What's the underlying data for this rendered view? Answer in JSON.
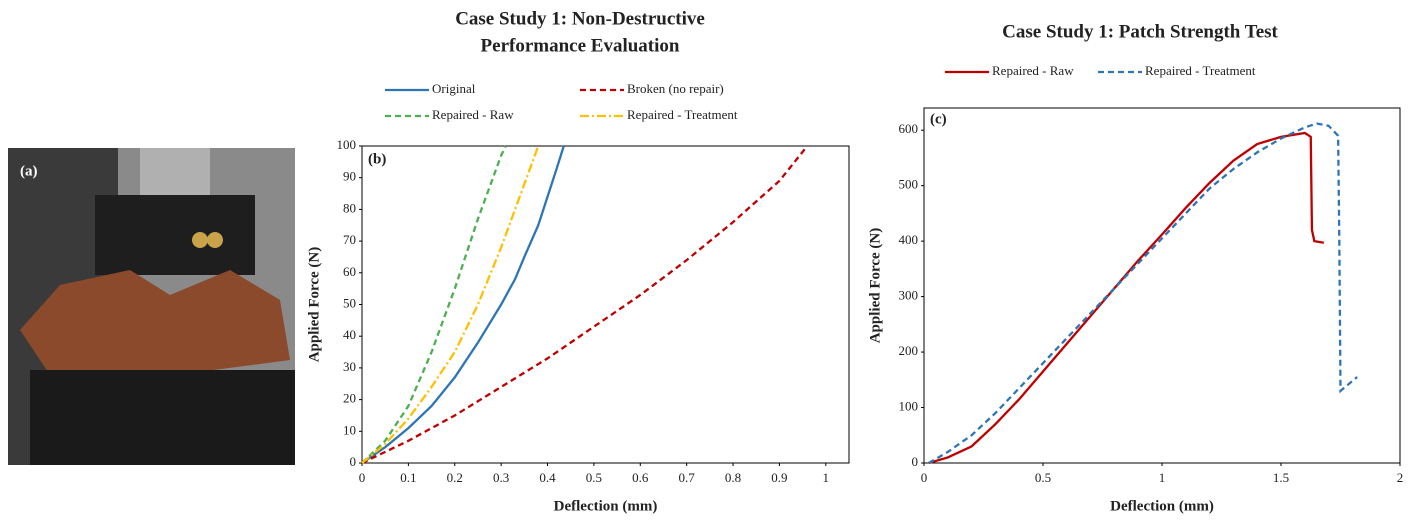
{
  "photo": {
    "label": "(a)"
  },
  "chart_data": [
    {
      "type": "line",
      "title": [
        "Case Study 1: Non-Destructive",
        "Performance Evaluation"
      ],
      "annotation": "(b)",
      "x_label": "Deflection (mm)",
      "y_label": "Applied Force (N)",
      "xlim": [
        0,
        1.05
      ],
      "ylim": [
        0,
        100
      ],
      "xticks": [
        0,
        0.1,
        0.2,
        0.3,
        0.4,
        0.5,
        0.6,
        0.7,
        0.8,
        0.9,
        1
      ],
      "yticks": [
        0,
        10,
        20,
        30,
        40,
        50,
        60,
        70,
        80,
        90,
        100
      ],
      "grid": false,
      "series": [
        {
          "name": "Original",
          "color": "#2e75b6",
          "dash": "solid",
          "x": [
            0,
            0.05,
            0.1,
            0.15,
            0.2,
            0.25,
            0.3,
            0.33,
            0.35,
            0.38,
            0.4,
            0.42,
            0.435
          ],
          "values": [
            0,
            5,
            11,
            18,
            27,
            38,
            50,
            58,
            65,
            75,
            84,
            93,
            100
          ]
        },
        {
          "name": "Broken (no repair)",
          "color": "#c00000",
          "dash": "dashed",
          "x": [
            0,
            0.1,
            0.2,
            0.3,
            0.4,
            0.5,
            0.6,
            0.7,
            0.8,
            0.9,
            0.96
          ],
          "values": [
            0,
            7,
            15,
            24,
            33,
            43,
            53,
            64,
            76,
            89,
            100
          ]
        },
        {
          "name": "Repaired - Raw",
          "color": "#4caf50",
          "dash": "dashed",
          "x": [
            0,
            0.05,
            0.1,
            0.15,
            0.2,
            0.25,
            0.3,
            0.31
          ],
          "values": [
            0,
            7,
            18,
            35,
            55,
            77,
            97,
            100
          ]
        },
        {
          "name": "Repaired - Treatment",
          "color": "#ffc000",
          "dash": "dashdot",
          "x": [
            0,
            0.05,
            0.1,
            0.15,
            0.2,
            0.25,
            0.3,
            0.35,
            0.38
          ],
          "values": [
            0,
            6,
            14,
            24,
            35,
            50,
            68,
            88,
            100
          ]
        }
      ]
    },
    {
      "type": "line",
      "title": [
        "Case Study 1: Patch Strength Test"
      ],
      "annotation": "(c)",
      "x_label": "Deflection (mm)",
      "y_label": "Applied Force (N)",
      "xlim": [
        0,
        2
      ],
      "ylim": [
        0,
        640
      ],
      "xticks": [
        0,
        0.5,
        1,
        1.5,
        2
      ],
      "yticks": [
        0,
        100,
        200,
        300,
        400,
        500,
        600
      ],
      "grid": false,
      "series": [
        {
          "name": "Repaired - Raw",
          "color": "#c00000",
          "dash": "solid",
          "x": [
            0.02,
            0.1,
            0.2,
            0.3,
            0.4,
            0.5,
            0.6,
            0.7,
            0.8,
            0.9,
            1.0,
            1.1,
            1.2,
            1.3,
            1.4,
            1.5,
            1.6,
            1.625,
            1.63,
            1.64,
            1.68
          ],
          "values": [
            0,
            10,
            30,
            70,
            115,
            165,
            215,
            265,
            315,
            365,
            412,
            460,
            505,
            545,
            575,
            588,
            595,
            588,
            420,
            400,
            397
          ]
        },
        {
          "name": "Repaired - Treatment",
          "color": "#2e75b6",
          "dash": "dashed",
          "x": [
            0.02,
            0.1,
            0.2,
            0.3,
            0.4,
            0.5,
            0.6,
            0.7,
            0.8,
            0.9,
            1.0,
            1.1,
            1.2,
            1.3,
            1.4,
            1.5,
            1.6,
            1.65,
            1.7,
            1.74,
            1.745,
            1.75,
            1.82
          ],
          "values": [
            0,
            20,
            50,
            90,
            135,
            180,
            225,
            270,
            315,
            360,
            405,
            450,
            495,
            530,
            560,
            585,
            605,
            612,
            608,
            590,
            400,
            130,
            155
          ]
        }
      ]
    }
  ]
}
